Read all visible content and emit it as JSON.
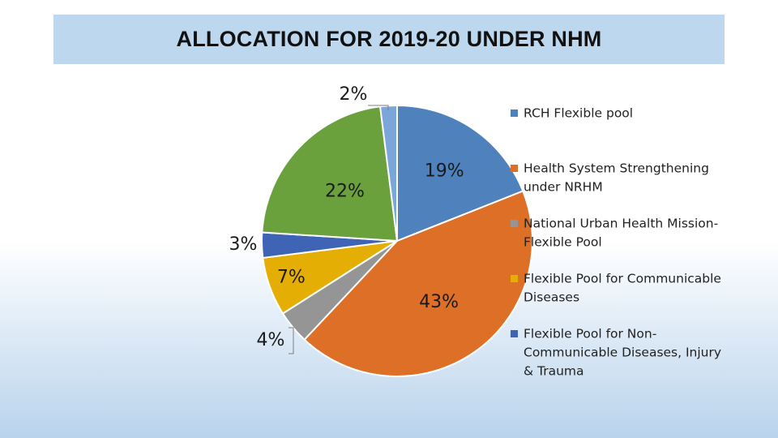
{
  "chart_data": {
    "type": "pie",
    "title": "ALLOCATION FOR 2019-20 UNDER NHM",
    "legend_position": "right",
    "slices": [
      {
        "name": "RCH Flexible pool",
        "value": 19,
        "label": "19%",
        "color": "#4f81bd"
      },
      {
        "name": "Health System Strengthening under NRHM",
        "value": 43,
        "label": "43%",
        "color": "#dd6f27"
      },
      {
        "name": "National Urban Health Mission-Flexible Pool",
        "value": 4,
        "label": "4%",
        "color": "#959595"
      },
      {
        "name": "Flexible Pool for Communicable Diseases",
        "value": 7,
        "label": "7%",
        "color": "#e5ae05"
      },
      {
        "name": "Flexible Pool for Non-Communicable Diseases, Injury & Trauma",
        "value": 3,
        "label": "3%",
        "color": "#3f63b5"
      },
      {
        "name": "",
        "value": 22,
        "label": "22%",
        "color": "#6aa13c"
      },
      {
        "name": "",
        "value": 2,
        "label": "2%",
        "color": "#7ba6da"
      }
    ],
    "legend": [
      {
        "lines": [
          "RCH Flexible pool"
        ],
        "color": "#4f81bd"
      },
      {
        "lines": [
          "Health System Strengthening",
          "under NRHM"
        ],
        "color": "#dd6f27"
      },
      {
        "lines": [
          "National Urban Health Mission-",
          "Flexible Pool"
        ],
        "color": "#959595"
      },
      {
        "lines": [
          "Flexible Pool for Communicable",
          "Diseases"
        ],
        "color": "#e5ae05"
      },
      {
        "lines": [
          "Flexible Pool for Non-",
          "Communicable Diseases, Injury",
          "& Trauma"
        ],
        "color": "#3f63b5"
      }
    ]
  }
}
